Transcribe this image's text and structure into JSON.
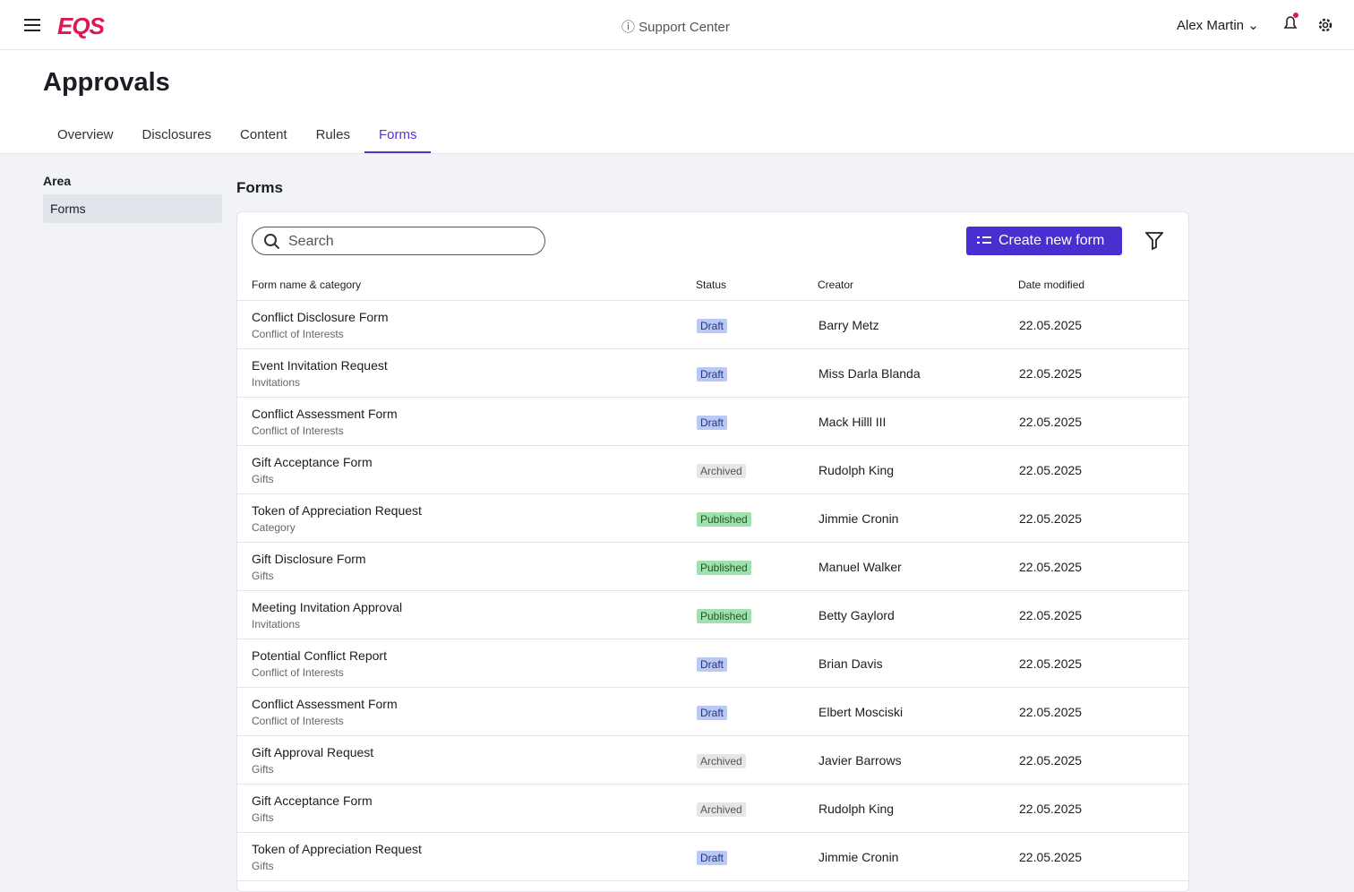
{
  "header": {
    "logo": "EQS",
    "support": "Support Center",
    "user": "Alex Martin"
  },
  "page": {
    "title": "Approvals",
    "tabs": [
      "Overview",
      "Disclosures",
      "Content",
      "Rules",
      "Forms"
    ],
    "active_tab": 4
  },
  "sidebar": {
    "heading": "Area",
    "items": [
      "Forms"
    ]
  },
  "panel": {
    "title": "Forms",
    "search_placeholder": "Search",
    "create_button": "Create new form"
  },
  "table": {
    "columns": [
      "Form name & category",
      "Status",
      "Creator",
      "Date modified"
    ],
    "rows": [
      [
        "Conflict Disclosure Form",
        "Conflict of Interests",
        "Draft",
        "Barry Metz",
        "22.05.2025"
      ],
      [
        "Event Invitation Request",
        "Invitations",
        "Draft",
        "Miss Darla Blanda",
        "22.05.2025"
      ],
      [
        "Conflict Assessment Form",
        "Conflict of Interests",
        "Draft",
        "Mack Hilll III",
        "22.05.2025"
      ],
      [
        "Gift Acceptance Form",
        "Gifts",
        "Archived",
        "Rudolph King",
        "22.05.2025"
      ],
      [
        "Token of Appreciation Request",
        "Category",
        "Published",
        "Jimmie Cronin",
        "22.05.2025"
      ],
      [
        "Gift Disclosure Form",
        "Gifts",
        "Published",
        "Manuel Walker",
        "22.05.2025"
      ],
      [
        "Meeting Invitation Approval",
        "Invitations",
        "Published",
        "Betty Gaylord",
        "22.05.2025"
      ],
      [
        "Potential Conflict Report",
        "Conflict of Interests",
        "Draft",
        "Brian Davis",
        "22.05.2025"
      ],
      [
        "Conflict Assessment Form",
        "Conflict of Interests",
        "Draft",
        "Elbert Mosciski",
        "22.05.2025"
      ],
      [
        "Gift Approval Request",
        "Gifts",
        "Archived",
        "Javier Barrows",
        "22.05.2025"
      ],
      [
        "Gift Acceptance Form",
        "Gifts",
        "Archived",
        "Rudolph King",
        "22.05.2025"
      ],
      [
        "Token of Appreciation Request",
        "Gifts",
        "Draft",
        "Jimmie Cronin",
        "22.05.2025"
      ]
    ]
  }
}
